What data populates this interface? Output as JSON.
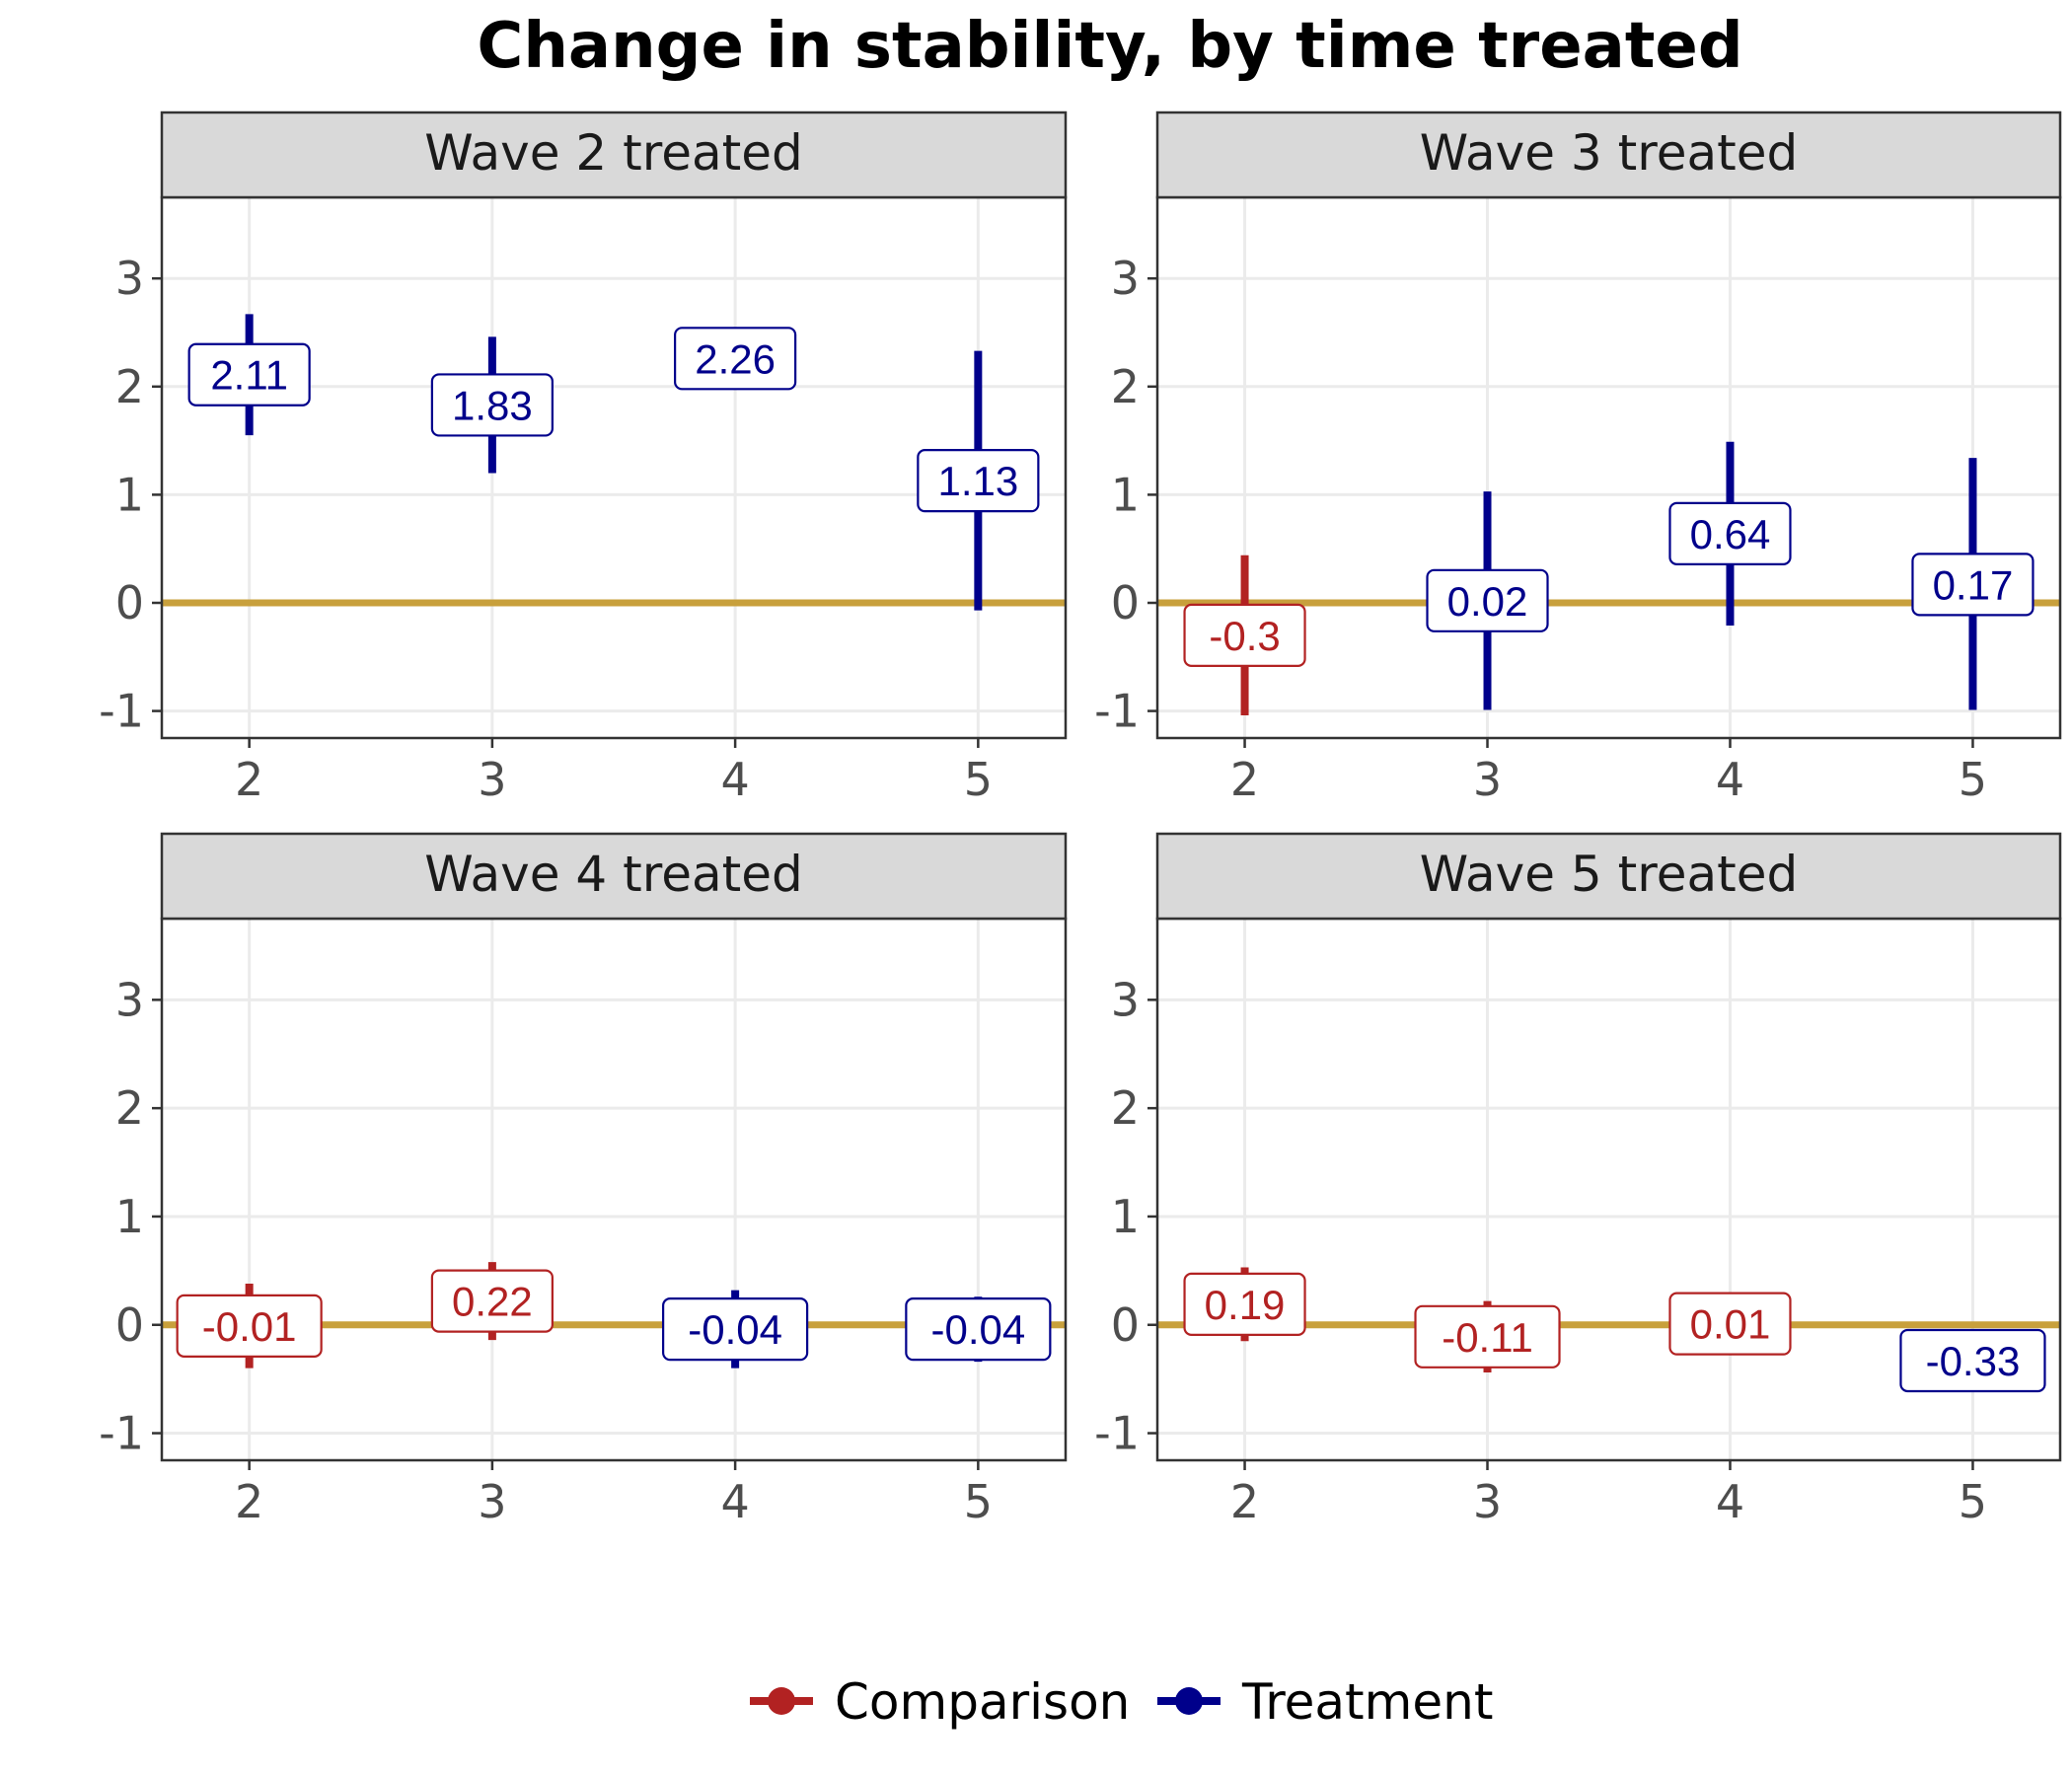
{
  "chart_data": {
    "type": "errorbar",
    "title": "Change in stability, by time treated",
    "xlabel": "",
    "ylabel": "",
    "ylim": [
      -1.25,
      3.75
    ],
    "xlim": [
      1.64,
      5.36
    ],
    "y_ticks": [
      -1,
      0,
      1,
      2,
      3
    ],
    "x_ticks": [
      2,
      3,
      4,
      5
    ],
    "grid": true,
    "reference_line": 0,
    "legend": {
      "placement": "bottom",
      "entries": [
        {
          "name": "Comparison",
          "color": "#B22222"
        },
        {
          "name": "Treatment",
          "color": "#00008B"
        }
      ]
    },
    "colors": {
      "Comparison": "#B22222",
      "Treatment": "#00008B",
      "reference_line": "#C8A03C",
      "strip_fill": "#D9D9D9"
    },
    "panels": [
      {
        "title": "Wave 2 treated",
        "points": [
          {
            "x": 2,
            "y": 2.11,
            "lower": 1.55,
            "upper": 2.67,
            "group": "Treatment",
            "label": "2.11"
          },
          {
            "x": 3,
            "y": 1.83,
            "lower": 1.2,
            "upper": 2.46,
            "group": "Treatment",
            "label": "1.83"
          },
          {
            "x": 4,
            "y": 2.26,
            "lower": 2.26,
            "upper": 2.26,
            "group": "Treatment",
            "label": "2.26"
          },
          {
            "x": 5,
            "y": 1.13,
            "lower": -0.07,
            "upper": 2.33,
            "group": "Treatment",
            "label": "1.13"
          }
        ]
      },
      {
        "title": "Wave 3 treated",
        "points": [
          {
            "x": 2,
            "y": -0.3,
            "lower": -1.04,
            "upper": 0.44,
            "group": "Comparison",
            "label": "-0.3"
          },
          {
            "x": 3,
            "y": 0.02,
            "lower": -0.99,
            "upper": 1.03,
            "group": "Treatment",
            "label": "0.02"
          },
          {
            "x": 4,
            "y": 0.64,
            "lower": -0.21,
            "upper": 1.49,
            "group": "Treatment",
            "label": "0.64"
          },
          {
            "x": 5,
            "y": 0.17,
            "lower": -0.99,
            "upper": 1.34,
            "group": "Treatment",
            "label": "0.17"
          }
        ]
      },
      {
        "title": "Wave 4 treated",
        "points": [
          {
            "x": 2,
            "y": -0.01,
            "lower": -0.4,
            "upper": 0.38,
            "group": "Comparison",
            "label": "-0.01"
          },
          {
            "x": 3,
            "y": 0.22,
            "lower": -0.14,
            "upper": 0.58,
            "group": "Comparison",
            "label": "0.22"
          },
          {
            "x": 4,
            "y": -0.04,
            "lower": -0.4,
            "upper": 0.32,
            "group": "Treatment",
            "label": "-0.04"
          },
          {
            "x": 5,
            "y": -0.04,
            "lower": -0.34,
            "upper": 0.26,
            "group": "Treatment",
            "label": "-0.04"
          }
        ]
      },
      {
        "title": "Wave 5 treated",
        "points": [
          {
            "x": 2,
            "y": 0.19,
            "lower": -0.15,
            "upper": 0.53,
            "group": "Comparison",
            "label": "0.19"
          },
          {
            "x": 3,
            "y": -0.11,
            "lower": -0.44,
            "upper": 0.22,
            "group": "Comparison",
            "label": "-0.11"
          },
          {
            "x": 4,
            "y": 0.01,
            "lower": -0.05,
            "upper": 0.07,
            "group": "Comparison",
            "label": "0.01"
          },
          {
            "x": 5,
            "y": -0.33,
            "lower": -0.62,
            "upper": -0.04,
            "group": "Treatment",
            "label": "-0.33"
          }
        ]
      }
    ]
  }
}
